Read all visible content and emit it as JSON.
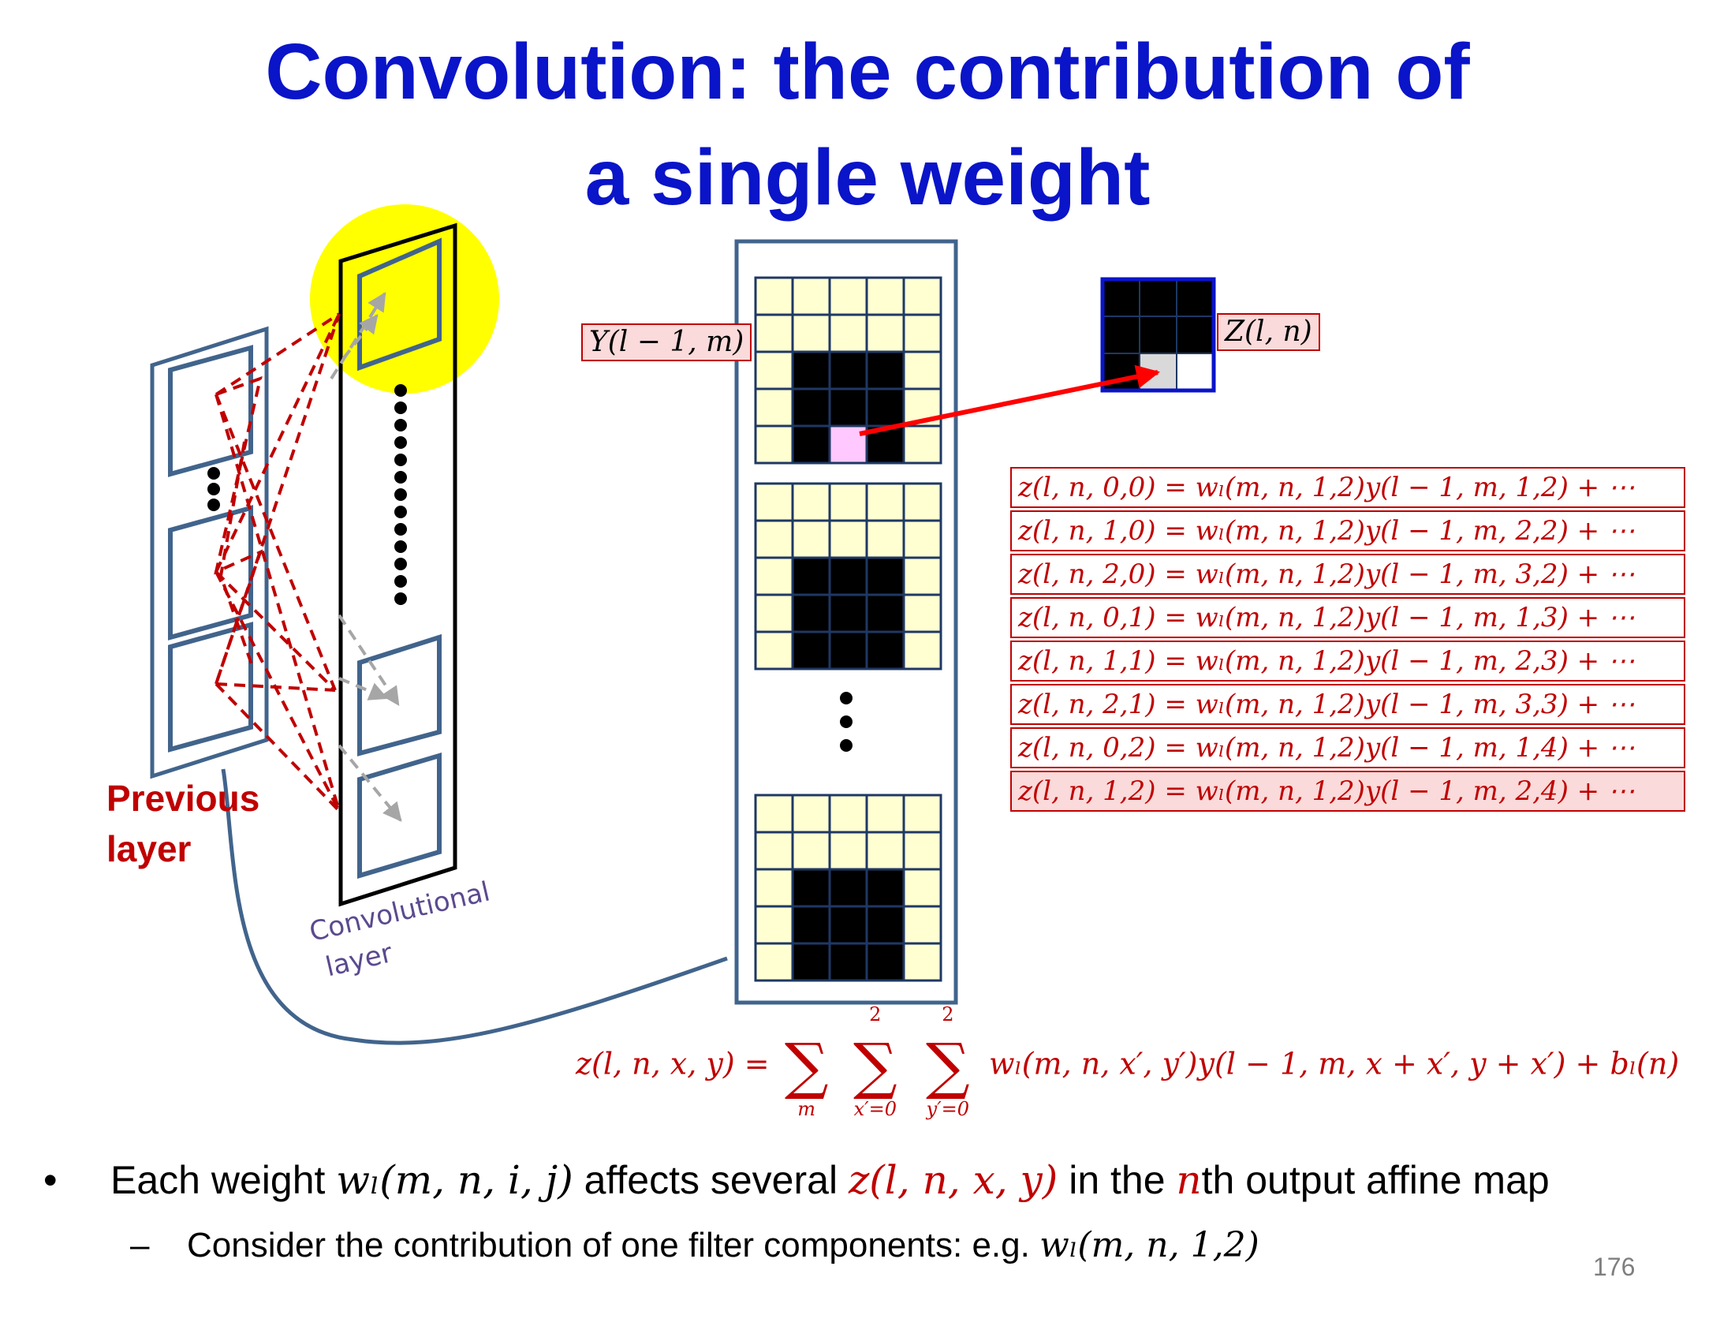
{
  "slide": {
    "title_line1": "Convolution: the contribution of",
    "title_line2": "a single weight",
    "page_number": "176"
  },
  "diagram": {
    "previous_layer_label_line1": "Previous",
    "previous_layer_label_line2": "layer",
    "conv_layer_label_line1": "Convolutional",
    "conv_layer_label_line2": "layer",
    "input_map_label": "Y(l − 1, m)",
    "output_map_label": "Z(l, n)"
  },
  "equations": [
    "z(l, n, 0,0) = wₗ(m, n, 1,2)y(l − 1, m, 1,2) + ⋯",
    "z(l, n, 1,0) = wₗ(m, n, 1,2)y(l − 1, m, 2,2) + ⋯",
    "z(l, n, 2,0) = wₗ(m, n, 1,2)y(l − 1, m, 3,2) + ⋯",
    "z(l, n, 0,1) = wₗ(m, n, 1,2)y(l − 1, m, 1,3) + ⋯",
    "z(l, n, 1,1) = wₗ(m, n, 1,2)y(l − 1, m, 2,3) + ⋯",
    "z(l, n, 2,1) = wₗ(m, n, 1,2)y(l − 1, m, 3,3) + ⋯",
    "z(l, n, 0,2) = wₗ(m, n, 1,2)y(l − 1, m, 1,4) + ⋯",
    "z(l, n, 1,2) = wₗ(m, n, 1,2)y(l − 1, m, 2,4) + ⋯"
  ],
  "formula": {
    "lhs": "z(l, n, x, y) =",
    "sum1_sub": "m",
    "sum2_sup": "2",
    "sum2_sub": "x′=0",
    "sum3_sup": "2",
    "sum3_sub": "y′=0",
    "rhs": "wₗ(m, n, x′, y′)y(l − 1, m, x + x′, y + x′) + bₗ(n)"
  },
  "bullets": {
    "b1_pre": "Each weight ",
    "b1_w": "wₗ(m, n, i, j)",
    "b1_mid": " affects several ",
    "b1_z": "z(l, n, x, y)",
    "b1_mid2": " in the ",
    "b1_n": "n",
    "b1_post": "th output affine map",
    "b2_pre": "Consider the contribution of one filter components: e.g. ",
    "b2_w": "wₗ(m, n, 1,2)"
  },
  "colors": {
    "title": "#0a14c8",
    "accent_red": "#c00000",
    "frame_blue": "#41648c",
    "highlight_yellow": "#ffff00",
    "grid_cell": "#ffffd2",
    "grid_line": "#1f3864",
    "active_cell": "#ffc8ff"
  }
}
